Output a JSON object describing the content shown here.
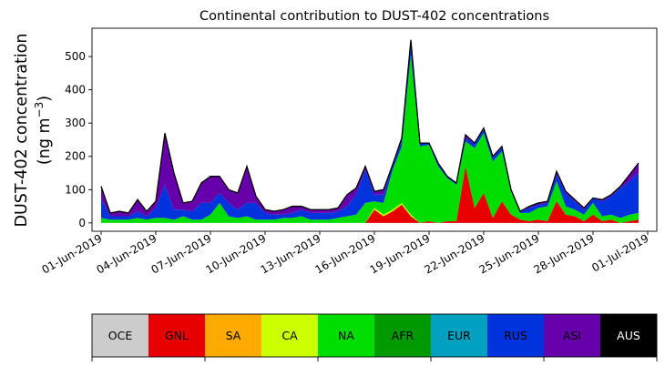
{
  "chart_data": {
    "type": "area",
    "stacked": true,
    "title": "Continental contribution to DUST-402 concentrations",
    "ylabel_line1": "DUST-402 concentration",
    "ylabel_line2": "(ng m",
    "ylabel_sup": "−3",
    "ylabel_close": ")",
    "ylim": [
      -25,
      585
    ],
    "yticks": [
      0,
      100,
      200,
      300,
      400,
      500
    ],
    "xlim": [
      "2019-05-31T12:00",
      "2019-07-01T12:00"
    ],
    "xticks": [
      "2019-06-01",
      "2019-06-04",
      "2019-06-07",
      "2019-06-10",
      "2019-06-13",
      "2019-06-16",
      "2019-06-19",
      "2019-06-22",
      "2019-06-25",
      "2019-06-28",
      "2019-07-01"
    ],
    "xtick_labels": [
      "01-Jun-2019",
      "04-Jun-2019",
      "07-Jun-2019",
      "10-Jun-2019",
      "13-Jun-2019",
      "16-Jun-2019",
      "19-Jun-2019",
      "22-Jun-2019",
      "25-Jun-2019",
      "28-Jun-2019",
      "01-Jul-2019"
    ],
    "grid": false,
    "legend_position": "bottom colorbar",
    "x": [
      "2019-06-01T00:00",
      "2019-06-01T12:00",
      "2019-06-02T00:00",
      "2019-06-02T12:00",
      "2019-06-03T00:00",
      "2019-06-03T12:00",
      "2019-06-04T00:00",
      "2019-06-04T12:00",
      "2019-06-05T00:00",
      "2019-06-05T12:00",
      "2019-06-06T00:00",
      "2019-06-06T12:00",
      "2019-06-07T00:00",
      "2019-06-07T12:00",
      "2019-06-08T00:00",
      "2019-06-08T12:00",
      "2019-06-09T00:00",
      "2019-06-09T12:00",
      "2019-06-10T00:00",
      "2019-06-10T12:00",
      "2019-06-11T00:00",
      "2019-06-11T12:00",
      "2019-06-12T00:00",
      "2019-06-12T12:00",
      "2019-06-13T00:00",
      "2019-06-13T12:00",
      "2019-06-14T00:00",
      "2019-06-14T12:00",
      "2019-06-15T00:00",
      "2019-06-15T12:00",
      "2019-06-16T00:00",
      "2019-06-16T12:00",
      "2019-06-17T00:00",
      "2019-06-17T12:00",
      "2019-06-18T00:00",
      "2019-06-18T12:00",
      "2019-06-19T00:00",
      "2019-06-19T12:00",
      "2019-06-20T00:00",
      "2019-06-20T12:00",
      "2019-06-21T00:00",
      "2019-06-21T12:00",
      "2019-06-22T00:00",
      "2019-06-22T12:00",
      "2019-06-23T00:00",
      "2019-06-23T12:00",
      "2019-06-24T00:00",
      "2019-06-24T12:00",
      "2019-06-25T00:00",
      "2019-06-25T12:00",
      "2019-06-26T00:00",
      "2019-06-26T12:00",
      "2019-06-27T00:00",
      "2019-06-27T12:00",
      "2019-06-28T00:00",
      "2019-06-28T12:00",
      "2019-06-29T00:00",
      "2019-06-29T12:00",
      "2019-06-30T00:00",
      "2019-06-30T12:00"
    ],
    "series": [
      {
        "name": "OCE",
        "color": "#cccccc",
        "values": [
          0,
          0,
          0,
          0,
          0,
          0,
          0,
          0,
          0,
          0,
          0,
          0,
          0,
          0,
          0,
          0,
          0,
          0,
          0,
          0,
          0,
          0,
          0,
          0,
          0,
          0,
          0,
          0,
          0,
          0,
          0,
          0,
          0,
          0,
          0,
          0,
          0,
          0,
          0,
          0,
          0,
          0,
          0,
          0,
          0,
          0,
          0,
          0,
          0,
          0,
          0,
          0,
          0,
          0,
          0,
          0,
          0,
          0,
          0,
          0
        ]
      },
      {
        "name": "GNL",
        "color": "#e80000",
        "values": [
          0,
          0,
          0,
          0,
          0,
          0,
          0,
          0,
          0,
          0,
          0,
          0,
          0,
          0,
          0,
          0,
          0,
          0,
          0,
          0,
          0,
          0,
          0,
          0,
          0,
          0,
          0,
          0,
          0,
          0,
          40,
          20,
          35,
          55,
          20,
          0,
          5,
          0,
          5,
          5,
          170,
          45,
          90,
          15,
          65,
          25,
          10,
          5,
          10,
          5,
          65,
          25,
          20,
          5,
          25,
          5,
          10,
          0,
          5,
          10
        ]
      },
      {
        "name": "SA",
        "color": "#ffaa00",
        "values": [
          0,
          0,
          0,
          0,
          0,
          0,
          0,
          0,
          0,
          0,
          0,
          0,
          0,
          0,
          0,
          0,
          0,
          0,
          0,
          0,
          0,
          0,
          0,
          0,
          0,
          0,
          0,
          0,
          0,
          0,
          0,
          0,
          0,
          0,
          0,
          0,
          0,
          0,
          0,
          0,
          0,
          0,
          0,
          0,
          0,
          0,
          0,
          0,
          0,
          0,
          0,
          0,
          0,
          0,
          0,
          0,
          0,
          0,
          0,
          0
        ]
      },
      {
        "name": "CA",
        "color": "#ccff00",
        "values": [
          0,
          0,
          0,
          0,
          0,
          0,
          0,
          0,
          0,
          0,
          0,
          0,
          0,
          0,
          0,
          0,
          0,
          0,
          0,
          0,
          0,
          0,
          0,
          0,
          0,
          0,
          0,
          0,
          0,
          0,
          5,
          5,
          5,
          5,
          5,
          0,
          0,
          0,
          0,
          0,
          0,
          0,
          0,
          0,
          0,
          0,
          0,
          0,
          0,
          0,
          0,
          0,
          0,
          0,
          0,
          0,
          0,
          0,
          0,
          0
        ]
      },
      {
        "name": "NA",
        "color": "#00dd00",
        "values": [
          15,
          10,
          10,
          10,
          15,
          10,
          15,
          15,
          10,
          20,
          10,
          10,
          25,
          60,
          20,
          15,
          20,
          10,
          10,
          10,
          15,
          15,
          20,
          10,
          10,
          10,
          15,
          20,
          25,
          60,
          20,
          35,
          120,
          170,
          480,
          230,
          230,
          170,
          130,
          110,
          75,
          180,
          180,
          170,
          150,
          70,
          20,
          25,
          35,
          45,
          60,
          25,
          20,
          20,
          35,
          15,
          15,
          15,
          20,
          20
        ]
      },
      {
        "name": "AFR",
        "color": "#009900",
        "values": [
          0,
          0,
          0,
          0,
          0,
          0,
          0,
          0,
          0,
          0,
          0,
          0,
          0,
          0,
          0,
          0,
          0,
          0,
          0,
          0,
          0,
          0,
          0,
          0,
          0,
          0,
          0,
          0,
          0,
          0,
          0,
          0,
          0,
          0,
          0,
          0,
          0,
          0,
          0,
          0,
          0,
          0,
          0,
          0,
          0,
          0,
          0,
          0,
          0,
          0,
          0,
          0,
          0,
          0,
          0,
          0,
          0,
          0,
          0,
          0
        ]
      },
      {
        "name": "EUR",
        "color": "#00a0c0",
        "values": [
          0,
          0,
          0,
          0,
          0,
          0,
          0,
          0,
          0,
          0,
          0,
          0,
          0,
          0,
          0,
          0,
          0,
          0,
          0,
          0,
          0,
          0,
          0,
          0,
          0,
          0,
          0,
          0,
          0,
          0,
          0,
          0,
          0,
          0,
          0,
          0,
          0,
          0,
          0,
          0,
          0,
          0,
          0,
          0,
          0,
          0,
          0,
          0,
          0,
          0,
          0,
          0,
          0,
          0,
          0,
          0,
          0,
          0,
          0,
          0
        ]
      },
      {
        "name": "RUS",
        "color": "#0033dd",
        "values": [
          60,
          10,
          10,
          10,
          20,
          10,
          30,
          100,
          30,
          20,
          25,
          50,
          35,
          30,
          40,
          25,
          40,
          50,
          20,
          15,
          10,
          15,
          20,
          20,
          20,
          20,
          20,
          30,
          60,
          100,
          20,
          25,
          15,
          15,
          30,
          10,
          5,
          10,
          5,
          5,
          10,
          15,
          10,
          10,
          15,
          5,
          5,
          15,
          10,
          10,
          20,
          40,
          25,
          15,
          15,
          45,
          55,
          90,
          100,
          120
        ]
      },
      {
        "name": "ASI",
        "color": "#6600aa",
        "values": [
          35,
          10,
          15,
          10,
          35,
          15,
          20,
          155,
          110,
          20,
          30,
          60,
          80,
          50,
          40,
          50,
          110,
          20,
          10,
          10,
          15,
          20,
          10,
          10,
          10,
          10,
          10,
          35,
          20,
          10,
          10,
          15,
          0,
          10,
          15,
          0,
          0,
          0,
          0,
          0,
          10,
          0,
          5,
          5,
          0,
          0,
          0,
          5,
          5,
          5,
          10,
          5,
          5,
          5,
          0,
          5,
          5,
          5,
          20,
          30
        ]
      },
      {
        "name": "AUS",
        "color": "#000000",
        "values": [
          0,
          0,
          0,
          0,
          0,
          0,
          0,
          0,
          0,
          0,
          0,
          0,
          0,
          0,
          0,
          0,
          0,
          0,
          0,
          0,
          0,
          0,
          0,
          0,
          0,
          0,
          0,
          0,
          0,
          0,
          0,
          0,
          0,
          0,
          0,
          0,
          0,
          0,
          0,
          0,
          0,
          0,
          0,
          0,
          0,
          0,
          0,
          0,
          0,
          0,
          0,
          0,
          0,
          0,
          0,
          0,
          0,
          0,
          0,
          0
        ]
      }
    ]
  }
}
